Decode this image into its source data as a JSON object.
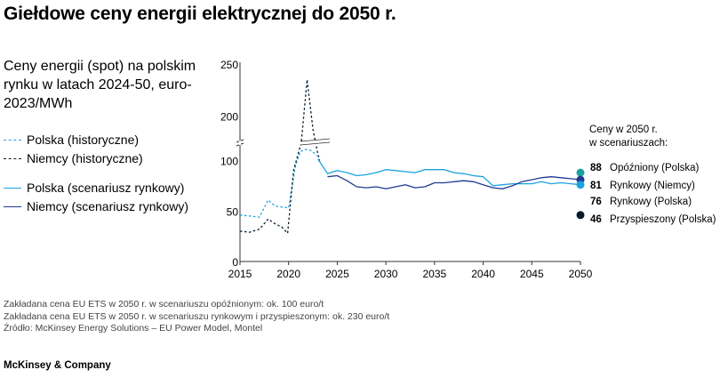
{
  "title": "Giełdowe ceny energii elektrycznej do 2050 r.",
  "subtitle": "Ceny energii (spot) na polskim rynku w latach 2024-50, euro-2023/MWh",
  "legend": [
    {
      "label": "Polska (historyczne)",
      "style": "dotted",
      "color": "#1aa3e0"
    },
    {
      "label": "Niemcy (historyczne)",
      "style": "dotted",
      "color": "#051c2c"
    },
    {
      "label": "Polska (scenariusz rynkowy)",
      "style": "solid",
      "color": "#1aa3e0"
    },
    {
      "label": "Niemcy (scenariusz rynkowy)",
      "style": "solid",
      "color": "#1f3a93"
    }
  ],
  "end_labels": {
    "header_line1": "Ceny w 2050 r.",
    "header_line2": "w scenariuszach:",
    "items": [
      {
        "value": "88",
        "label": "Opóźniony (Polska)",
        "color": "#17a2a0"
      },
      {
        "value": "81",
        "label": "Rynkowy (Niemcy)",
        "color": "#1f3a93"
      },
      {
        "value": "76",
        "label": "Rynkowy (Polska)",
        "color": "#1aa3e0"
      },
      {
        "value": "46",
        "label": "Przyspieszony (Polska)",
        "color": "#051c2c"
      }
    ]
  },
  "notes": [
    "Zakładana cena EU ETS w 2050 r. w scenariuszu opóźnionym: ok. 100 euro/t",
    "Zakładana cena EU ETS w 2050 r. w scenariuszu rynkowym i przyspieszonym: ok. 230 euro/t",
    "Źródło: McKinsey Energy Solutions – EU Power Model, Montel"
  ],
  "brand": "McKinsey & Company",
  "chart_data": {
    "type": "line",
    "title": "Giełdowe ceny energii elektrycznej do 2050 r.",
    "ylabel": "euro-2023/MWh",
    "x_ticks": [
      2015,
      2020,
      2025,
      2030,
      2035,
      2040,
      2045,
      2050
    ],
    "y_ticks": [
      "0",
      "50",
      "100",
      "200",
      "250"
    ],
    "y_axis_break": "between 100 and 200",
    "xlim": [
      2015,
      2050
    ],
    "grid": false,
    "series": [
      {
        "name": "Polska (historyczne)",
        "style": "dotted",
        "color": "#1aa3e0",
        "points": [
          [
            2015.0,
            46
          ],
          [
            2016.0,
            45
          ],
          [
            2017.0,
            44
          ],
          [
            2017.9,
            61
          ],
          [
            2018.6,
            55
          ],
          [
            2019.3,
            54
          ],
          [
            2020.0,
            53
          ],
          [
            2020.7,
            95
          ],
          [
            2021.2,
            120
          ],
          [
            2021.7,
            125
          ],
          [
            2022.4,
            122
          ],
          [
            2022.9,
            110
          ]
        ]
      },
      {
        "name": "Niemcy (historyczne)",
        "style": "dotted",
        "color": "#051c2c",
        "points": [
          [
            2015.0,
            30
          ],
          [
            2016.0,
            29
          ],
          [
            2017.0,
            32
          ],
          [
            2017.9,
            42
          ],
          [
            2018.5,
            38
          ],
          [
            2019.3,
            34
          ],
          [
            2019.9,
            28
          ],
          [
            2020.5,
            90
          ],
          [
            2021.3,
            140
          ],
          [
            2021.9,
            235
          ],
          [
            2022.5,
            170
          ],
          [
            2023.0,
            115
          ],
          [
            2023.2,
            100
          ]
        ]
      },
      {
        "name": "Polska (scenariusz rynkowy)",
        "style": "solid",
        "color": "#1aa3e0",
        "points": [
          [
            2023.0,
            104
          ],
          [
            2024.0,
            87
          ],
          [
            2025.0,
            90
          ],
          [
            2026.0,
            88
          ],
          [
            2027.0,
            85
          ],
          [
            2028.0,
            86
          ],
          [
            2029.0,
            88
          ],
          [
            2030.0,
            91
          ],
          [
            2031.0,
            90
          ],
          [
            2032.0,
            89
          ],
          [
            2033.0,
            88
          ],
          [
            2034.0,
            91
          ],
          [
            2035.0,
            91
          ],
          [
            2036.0,
            91
          ],
          [
            2037.0,
            88
          ],
          [
            2038.0,
            87
          ],
          [
            2039.0,
            85
          ],
          [
            2040.0,
            84
          ],
          [
            2041.0,
            75
          ],
          [
            2042.0,
            76
          ],
          [
            2043.0,
            77
          ],
          [
            2044.0,
            77
          ],
          [
            2045.0,
            77
          ],
          [
            2046.0,
            79
          ],
          [
            2047.0,
            77
          ],
          [
            2048.0,
            78
          ],
          [
            2049.0,
            77
          ],
          [
            2050.0,
            76
          ]
        ]
      },
      {
        "name": "Niemcy (scenariusz rynkowy)",
        "style": "solid",
        "color": "#1f3a93",
        "points": [
          [
            2024.0,
            84
          ],
          [
            2025.0,
            85
          ],
          [
            2026.0,
            80
          ],
          [
            2027.0,
            74
          ],
          [
            2028.0,
            73
          ],
          [
            2029.0,
            74
          ],
          [
            2030.0,
            72
          ],
          [
            2031.0,
            74
          ],
          [
            2032.0,
            76
          ],
          [
            2033.0,
            73
          ],
          [
            2034.0,
            74
          ],
          [
            2035.0,
            78
          ],
          [
            2036.0,
            78
          ],
          [
            2037.0,
            79
          ],
          [
            2038.0,
            80
          ],
          [
            2039.0,
            79
          ],
          [
            2040.0,
            76
          ],
          [
            2041.0,
            73
          ],
          [
            2042.0,
            72
          ],
          [
            2043.0,
            75
          ],
          [
            2044.0,
            79
          ],
          [
            2045.0,
            81
          ],
          [
            2046.0,
            83
          ],
          [
            2047.0,
            84
          ],
          [
            2048.0,
            83
          ],
          [
            2049.0,
            82
          ],
          [
            2050.0,
            81
          ]
        ]
      }
    ],
    "endpoints": [
      {
        "name": "Opóźniony (Polska)",
        "x": 2050,
        "y": 88,
        "color": "#17a2a0"
      },
      {
        "name": "Rynkowy (Niemcy)",
        "x": 2050,
        "y": 81,
        "color": "#1f3a93"
      },
      {
        "name": "Rynkowy (Polska)",
        "x": 2050,
        "y": 76,
        "color": "#1aa3e0"
      },
      {
        "name": "Przyspieszony (Polska)",
        "x": 2050,
        "y": 46,
        "color": "#051c2c"
      }
    ]
  }
}
